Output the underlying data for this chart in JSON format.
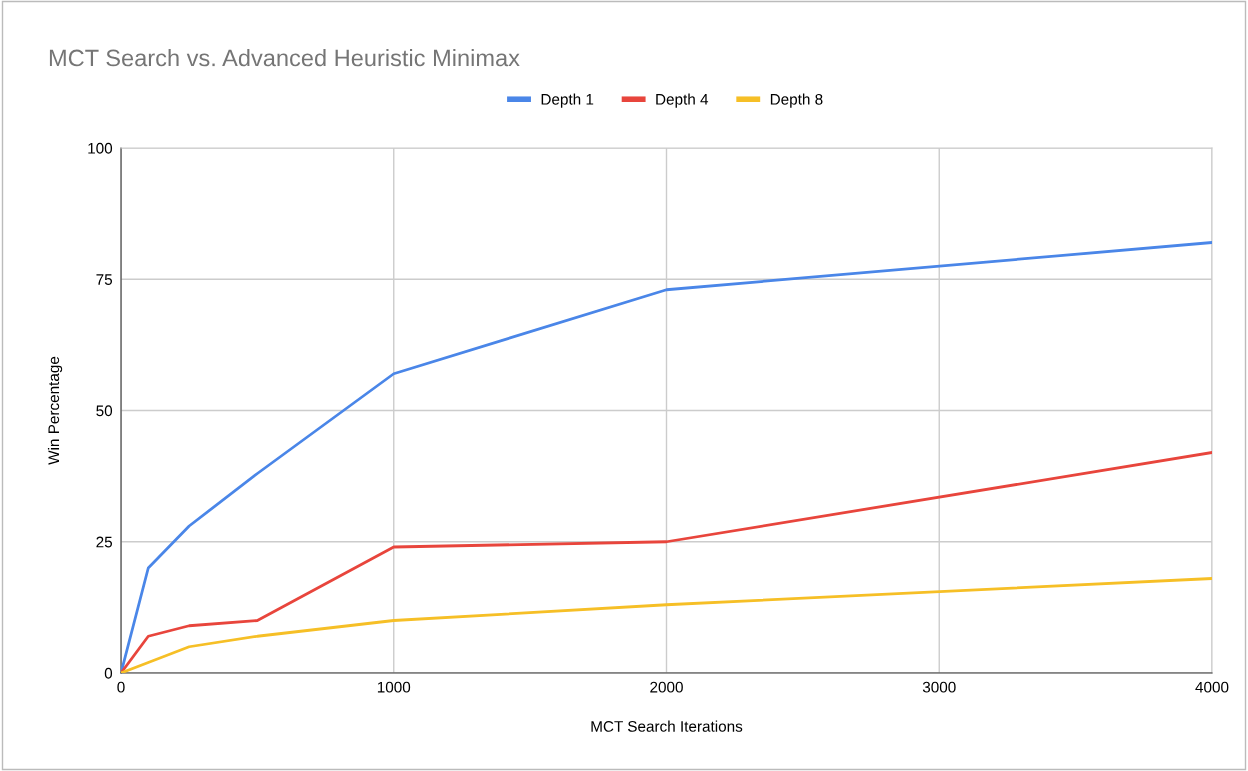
{
  "chart_data": {
    "type": "line",
    "title": "MCT Search vs. Advanced Heuristic Minimax",
    "xlabel": "MCT Search Iterations",
    "ylabel": "Win Percentage",
    "x": [
      0,
      100,
      250,
      500,
      1000,
      2000,
      4000
    ],
    "series": [
      {
        "name": "Depth 1",
        "color": "#4a86e8",
        "values": [
          0,
          20,
          28,
          38,
          57,
          73,
          82
        ]
      },
      {
        "name": "Depth 4",
        "color": "#e8453c",
        "values": [
          0,
          7,
          9,
          10,
          24,
          25,
          42
        ]
      },
      {
        "name": "Depth 8",
        "color": "#f6bf26",
        "values": [
          0,
          2,
          5,
          7,
          10,
          13,
          18
        ]
      }
    ],
    "xlim": [
      0,
      4000
    ],
    "xticks": [
      0,
      1000,
      2000,
      3000,
      4000
    ],
    "ylim": [
      0,
      100
    ],
    "yticks": [
      0,
      25,
      50,
      75,
      100
    ],
    "grid": true,
    "legend": "top",
    "marker": "none",
    "line_style": "solid"
  }
}
